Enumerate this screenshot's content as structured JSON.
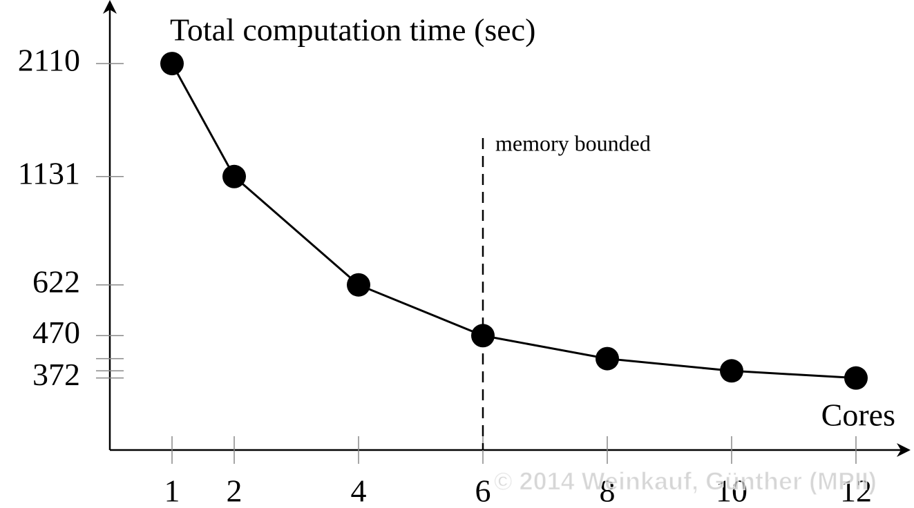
{
  "chart_data": {
    "type": "line",
    "y_log_scale": true,
    "y_label": "Total computation time (sec)",
    "x_label": "Cores",
    "x": [
      1,
      2,
      4,
      6,
      8,
      10,
      12
    ],
    "series": [
      {
        "color": "#000000",
        "values": [
          2110,
          1131,
          622,
          470,
          414,
          387,
          372
        ]
      }
    ],
    "xlim": [
      0,
      12.8
    ],
    "xticks": [
      1,
      2,
      4,
      6,
      8,
      10,
      12
    ],
    "ylim": [
      250,
      2940
    ],
    "yticks": [
      2110,
      1131,
      622,
      470,
      372
    ],
    "yminorticks": [
      414,
      387
    ],
    "annotation": {
      "text": "memory bounded",
      "x": 6
    },
    "watermark": "© 2014 Weinkauf, Günther (MPII)"
  }
}
